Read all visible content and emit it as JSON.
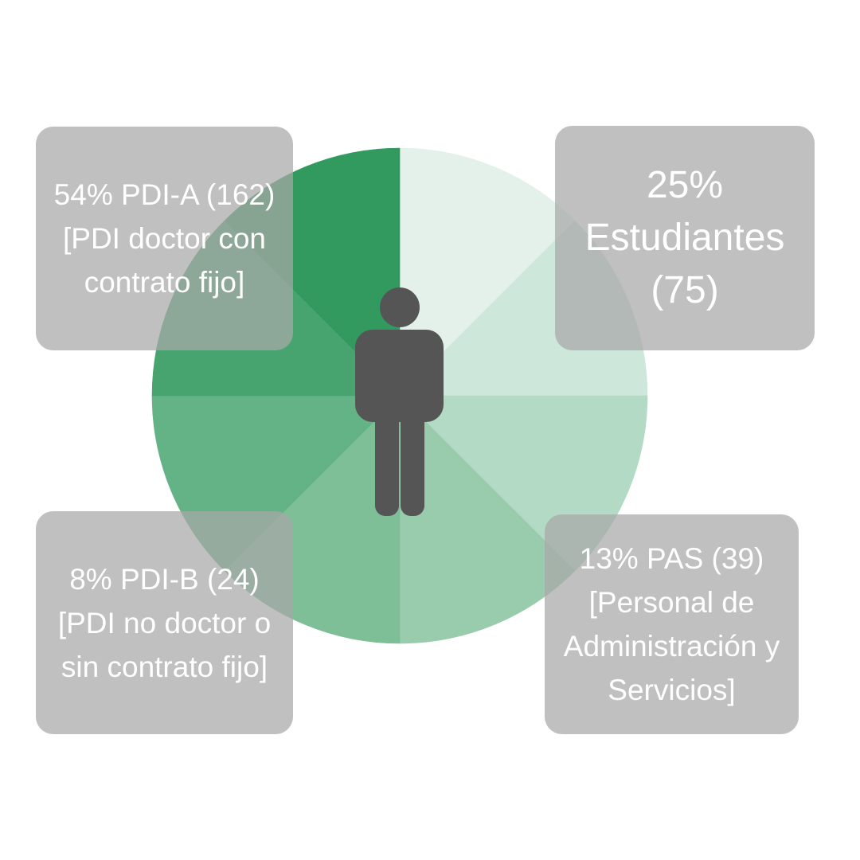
{
  "chart_data": {
    "type": "pie",
    "segments": [
      {
        "label": "54% PDI-A (162) [PDI doctor con contrato fijo]",
        "percent": 54,
        "count": 162
      },
      {
        "label": "25% Estudiantes (75)",
        "percent": 25,
        "count": 75
      },
      {
        "label": "13% PAS (39) [Personal de Administración y Servicios]",
        "percent": 13,
        "count": 39
      },
      {
        "label": "8% PDI-B (24) [PDI no doctor o sin contrato fijo]",
        "percent": 8,
        "count": 24
      }
    ],
    "wedge_colors": [
      "#e3f1ea",
      "#cde7da",
      "#b2dac4",
      "#99cbad",
      "#7fbf98",
      "#64b386",
      "#48a46f",
      "#32995f"
    ],
    "center_icon": "person-icon"
  },
  "labels": {
    "top_left": "54% PDI-A (162) [PDI doctor con contrato fijo]",
    "top_right": "25% Estudiantes (75)",
    "bottom_left": "8% PDI-B (24) [PDI no doctor o sin contrato fijo]",
    "bottom_right": "13% PAS (39) [Personal de Administración y Servicios]"
  },
  "colors": {
    "label_box": "#a8a8a8",
    "label_text": "#ffffff",
    "icon": "#555555"
  }
}
